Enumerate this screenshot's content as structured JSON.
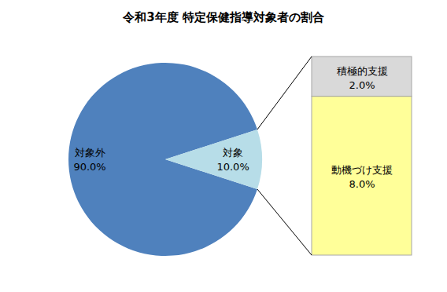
{
  "chart_data": [
    {
      "type": "pie",
      "title": "令和3年度 特定保健指導対象者の割合",
      "categories": [
        "対象外",
        "対象"
      ],
      "values": [
        90.0,
        10.0
      ],
      "value_labels": [
        "90.0%",
        "10.0%"
      ],
      "colors": [
        "#4f81bd",
        "#b7dde8"
      ],
      "data_labels": true
    },
    {
      "type": "bar",
      "stacked": true,
      "categories": [
        "動機づけ支援",
        "積極的支援"
      ],
      "values": [
        8.0,
        2.0
      ],
      "value_labels": [
        "8.0%",
        "2.0%"
      ],
      "colors": [
        "#ffff99",
        "#d9d9d9"
      ],
      "ylim": [
        0,
        10
      ],
      "data_labels": true,
      "tick_labels": false
    }
  ]
}
